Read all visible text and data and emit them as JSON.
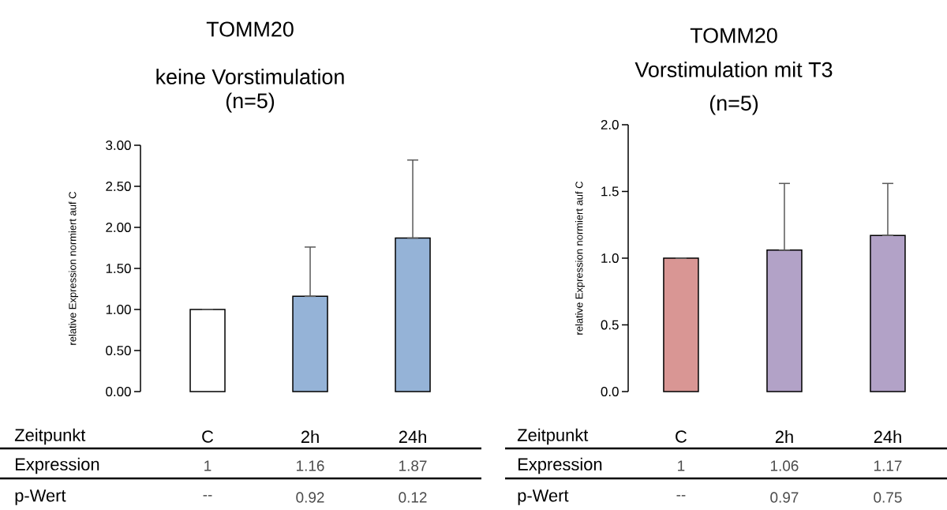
{
  "chart_data": [
    {
      "type": "bar",
      "title": "TOMM20",
      "subtitle": "keine Vorstimulation",
      "ylabel": "relative Expression normiert auf C",
      "categories": [
        "C",
        "2h",
        "24h"
      ],
      "values": [
        1,
        1.16,
        1.87
      ],
      "value_labels": [
        "1",
        "1.16",
        "1.87"
      ],
      "colors": [
        "#ffffff",
        "#95b3d7",
        "#95b3d7"
      ],
      "errors": [
        [
          1,
          1
        ],
        [
          1.16,
          1.76
        ],
        [
          1.87,
          2.82
        ]
      ],
      "ylim": [
        0,
        3
      ],
      "yticks": [
        {
          "value": 0,
          "label": "0.00"
        },
        {
          "value": 0.5,
          "label": "0.50"
        },
        {
          "value": 1,
          "label": "1.00"
        },
        {
          "value": 1.5,
          "label": "1.50"
        },
        {
          "value": 2,
          "label": "2.00"
        },
        {
          "value": 2.5,
          "label": "2.50"
        },
        {
          "value": 3,
          "label": "3.00"
        }
      ],
      "annotations": [
        "(n=5)",
        "Zeitpunkt",
        "Expression",
        "p-Wert",
        "--",
        "0.92",
        "0.12"
      ]
    },
    {
      "type": "bar",
      "title": "TOMM20",
      "subtitle": "Vorstimulation mit T3",
      "ylabel": "relative Expression normiert auf C",
      "categories": [
        "C",
        "2h",
        "24h"
      ],
      "values": [
        1,
        1.06,
        1.17
      ],
      "value_labels": [
        "1",
        "1.06",
        "1.17"
      ],
      "colors": [
        "#d99694",
        "#b2a2c7",
        "#b2a2c7"
      ],
      "errors": [
        [
          1,
          1
        ],
        [
          1.06,
          1.56
        ],
        [
          1.17,
          1.56
        ]
      ],
      "ylim": [
        0,
        2
      ],
      "yticks": [
        {
          "value": 0,
          "label": "0.0"
        },
        {
          "value": 0.5,
          "label": "0.5"
        },
        {
          "value": 1,
          "label": "1.0"
        },
        {
          "value": 1.5,
          "label": "1.5"
        },
        {
          "value": 2,
          "label": "2.0"
        }
      ],
      "annotations": [
        "(n=5)",
        "Zeitpunkt",
        "Expression",
        "p-Wert",
        "--",
        "0.97",
        "0.75"
      ]
    }
  ]
}
